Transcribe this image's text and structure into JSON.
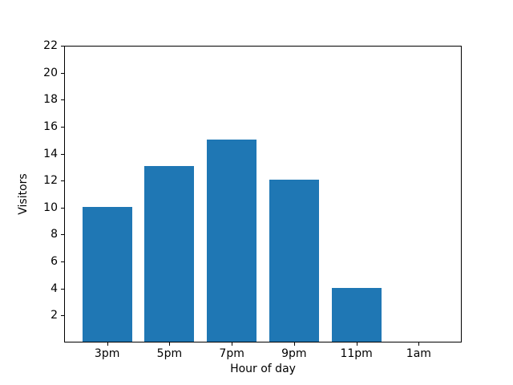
{
  "chart_data": {
    "type": "bar",
    "title": "",
    "xlabel": "Hour of day",
    "ylabel": "Visitors",
    "categories": [
      "3pm",
      "5pm",
      "7pm",
      "9pm",
      "11pm",
      "1am"
    ],
    "values": [
      10,
      13,
      15,
      12,
      4,
      0
    ],
    "yticks": [
      2,
      4,
      6,
      8,
      10,
      12,
      14,
      16,
      18,
      20,
      22
    ],
    "ylim": [
      0,
      22
    ],
    "bar_color": "#1f77b4",
    "background_color": "#ffffff",
    "axis_color": "#000000",
    "grid": false,
    "legend": null
  }
}
